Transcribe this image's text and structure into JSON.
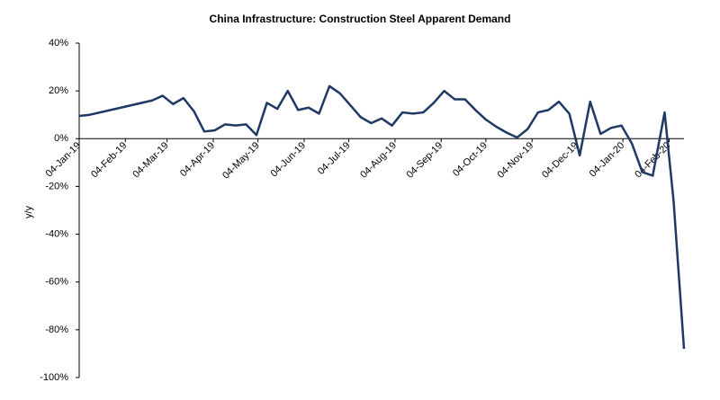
{
  "chart_data": {
    "type": "line",
    "title": "China Infrastructure: Construction Steel Apparent Demand",
    "y_label": "y/y",
    "x": [
      "2019-01-04",
      "2019-01-11",
      "2019-02-22",
      "2019-03-01",
      "2019-03-08",
      "2019-03-15",
      "2019-03-22",
      "2019-03-29",
      "2019-04-05",
      "2019-04-12",
      "2019-04-19",
      "2019-04-26",
      "2019-05-03",
      "2019-05-10",
      "2019-05-17",
      "2019-05-24",
      "2019-05-31",
      "2019-06-07",
      "2019-06-14",
      "2019-06-21",
      "2019-06-28",
      "2019-07-05",
      "2019-07-12",
      "2019-07-19",
      "2019-07-26",
      "2019-08-02",
      "2019-08-09",
      "2019-08-16",
      "2019-08-23",
      "2019-08-30",
      "2019-09-06",
      "2019-09-13",
      "2019-09-20",
      "2019-09-27",
      "2019-10-04",
      "2019-10-11",
      "2019-10-18",
      "2019-10-25",
      "2019-11-01",
      "2019-11-08",
      "2019-11-15",
      "2019-11-22",
      "2019-11-29",
      "2019-12-06",
      "2019-12-13",
      "2019-12-20",
      "2019-12-27",
      "2020-01-03",
      "2020-01-10",
      "2020-01-17",
      "2020-01-24",
      "2020-02-01",
      "2020-02-07",
      "2020-02-14"
    ],
    "series": [
      {
        "name": "Construction Steel Apparent Demand",
        "color": "#1f3864",
        "values": [
          9.5,
          10,
          16,
          18,
          14.5,
          17,
          11.5,
          3,
          3.5,
          6,
          5.5,
          6,
          1.5,
          15,
          12.5,
          20,
          12,
          13,
          10.5,
          22,
          19,
          14,
          9,
          6.5,
          8.5,
          5.5,
          11,
          10.5,
          11,
          15,
          20,
          16.5,
          16.5,
          12,
          8,
          5,
          2.5,
          0.5,
          4,
          11,
          12,
          15.5,
          10.5,
          -7,
          15.5,
          2,
          4.5,
          5.5,
          -2,
          -14,
          -15.5,
          11,
          -26,
          -88
        ]
      }
    ],
    "xlim": [
      "2019-01-04",
      "2020-02-14"
    ],
    "xticks": [
      {
        "value": "2019-01-04",
        "label": "04-Jan-19"
      },
      {
        "value": "2019-02-04",
        "label": "04-Feb-19"
      },
      {
        "value": "2019-03-04",
        "label": "04-Mar-19"
      },
      {
        "value": "2019-04-04",
        "label": "04-Apr-19"
      },
      {
        "value": "2019-05-04",
        "label": "04-May-19"
      },
      {
        "value": "2019-06-04",
        "label": "04-Jun-19"
      },
      {
        "value": "2019-07-04",
        "label": "04-Jul-19"
      },
      {
        "value": "2019-08-04",
        "label": "04-Aug-19"
      },
      {
        "value": "2019-09-04",
        "label": "04-Sep-19"
      },
      {
        "value": "2019-10-04",
        "label": "04-Oct-19"
      },
      {
        "value": "2019-11-04",
        "label": "04-Nov-19"
      },
      {
        "value": "2019-12-04",
        "label": "04-Dec-19"
      },
      {
        "value": "2020-01-04",
        "label": "04-Jan-20"
      },
      {
        "value": "2020-02-04",
        "label": "04-Feb-20"
      }
    ],
    "ylim": [
      -100,
      40
    ],
    "yticks": [
      {
        "value": -100,
        "label": "-100%"
      },
      {
        "value": -80,
        "label": "-80%"
      },
      {
        "value": -60,
        "label": "-60%"
      },
      {
        "value": -40,
        "label": "-40%"
      },
      {
        "value": -20,
        "label": "-20%"
      },
      {
        "value": 0,
        "label": "0%"
      },
      {
        "value": 20,
        "label": "20%"
      },
      {
        "value": 40,
        "label": "40%"
      }
    ]
  }
}
